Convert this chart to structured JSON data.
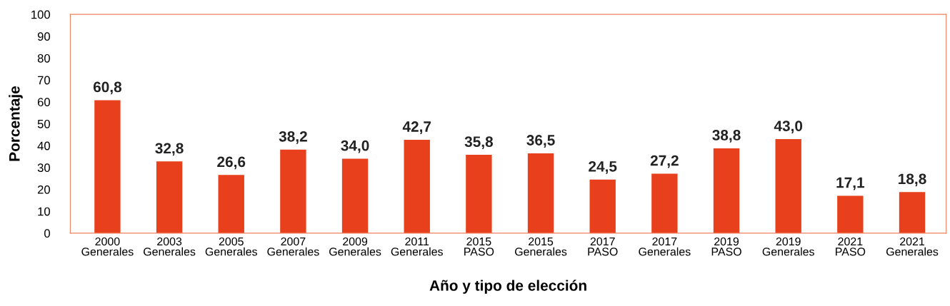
{
  "chart_data": {
    "type": "bar",
    "xlabel": "Año y tipo de elección",
    "ylabel": "Porcentaje",
    "categories": [
      "2000\nGenerales",
      "2003\nGenerales",
      "2005\nGenerales",
      "2007\nGenerales",
      "2009\nGenerales",
      "2011\nGenerales",
      "2015\nPASO",
      "2015\nGenerales",
      "2017\nPASO",
      "2017\nGenerales",
      "2019\nPASO",
      "2019\nGenerales",
      "2021\nPASO",
      "2021\nGenerales"
    ],
    "values": [
      60.8,
      32.8,
      26.6,
      38.2,
      34.0,
      42.7,
      35.8,
      36.5,
      24.5,
      27.2,
      38.8,
      43.0,
      17.1,
      18.8
    ],
    "value_labels": [
      "60,8",
      "32,8",
      "26,6",
      "38,2",
      "34,0",
      "42,7",
      "35,8",
      "36,5",
      "24,5",
      "27,2",
      "38,8",
      "43,0",
      "17,1",
      "18,8"
    ],
    "color": "#e8401c",
    "ylim": [
      0,
      100
    ],
    "yticks": [
      0,
      10,
      20,
      30,
      40,
      50,
      60,
      70,
      80,
      90,
      100
    ],
    "grid": false
  }
}
